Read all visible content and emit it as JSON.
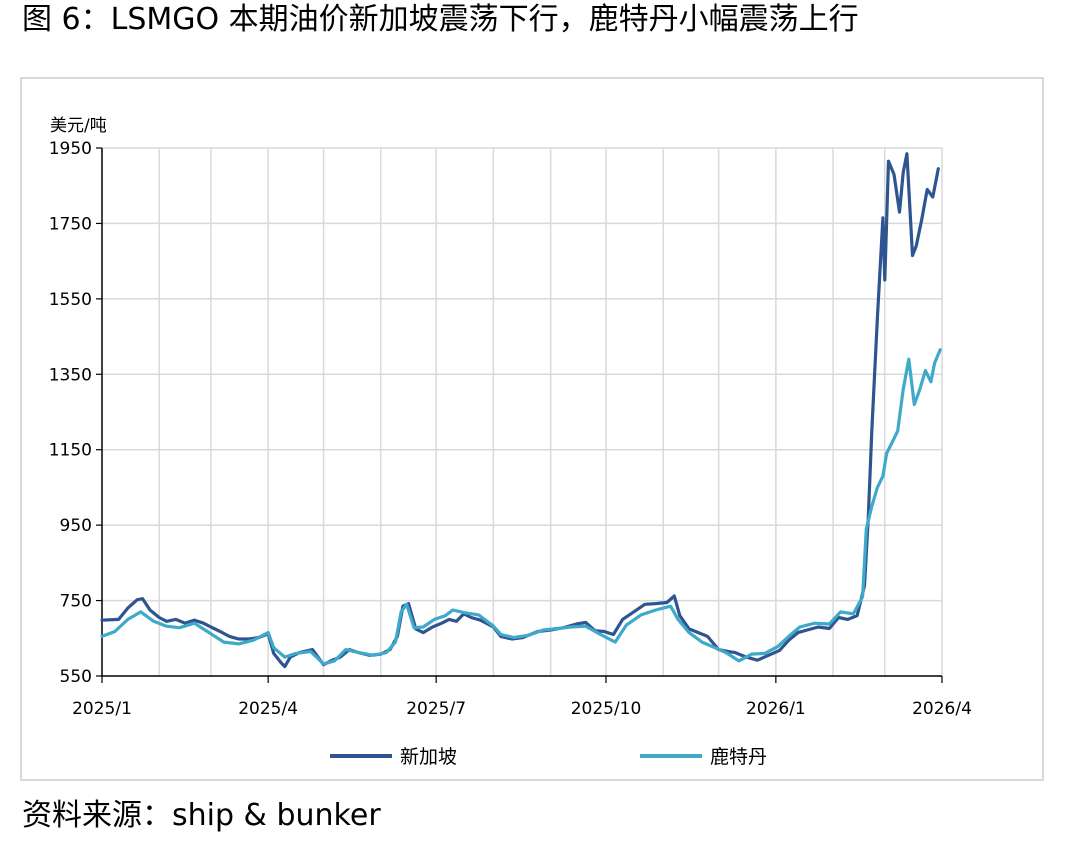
{
  "figure": {
    "title": "图 6：LSMGO 本期油价新加坡震荡下行，鹿特丹小幅震荡上行",
    "source": "资料来源：ship & bunker"
  },
  "chart_data": {
    "type": "line",
    "ylabel": "美元/吨",
    "ylim": [
      550,
      1950
    ],
    "yticks": [
      550,
      750,
      950,
      1150,
      1350,
      1550,
      1750,
      1950
    ],
    "x_axis": {
      "type": "date",
      "range": [
        "2025-01-01",
        "2026-04-01"
      ],
      "ticks": [
        {
          "date": "2025-01-01",
          "label": "2025/1"
        },
        {
          "date": "2025-04-01",
          "label": "2025/4"
        },
        {
          "date": "2025-07-01",
          "label": "2025/7"
        },
        {
          "date": "2025-10-01",
          "label": "2025/10"
        },
        {
          "date": "2026-01-01",
          "label": "2026/1"
        },
        {
          "date": "2026-04-01",
          "label": "2026/4"
        }
      ]
    },
    "grid": "vertical-and-horizontal",
    "legend_position": "bottom",
    "series": [
      {
        "name": "新加坡",
        "color": "#2e5590",
        "points": [
          [
            "2025-01-01",
            698
          ],
          [
            "2025-01-10",
            700
          ],
          [
            "2025-01-15",
            730
          ],
          [
            "2025-01-20",
            752
          ],
          [
            "2025-01-23",
            755
          ],
          [
            "2025-01-27",
            725
          ],
          [
            "2025-02-01",
            705
          ],
          [
            "2025-02-05",
            695
          ],
          [
            "2025-02-10",
            700
          ],
          [
            "2025-02-15",
            690
          ],
          [
            "2025-02-20",
            698
          ],
          [
            "2025-02-25",
            690
          ],
          [
            "2025-03-01",
            680
          ],
          [
            "2025-03-06",
            668
          ],
          [
            "2025-03-11",
            655
          ],
          [
            "2025-03-16",
            648
          ],
          [
            "2025-03-22",
            648
          ],
          [
            "2025-03-27",
            652
          ],
          [
            "2025-04-01",
            662
          ],
          [
            "2025-04-04",
            610
          ],
          [
            "2025-04-08",
            585
          ],
          [
            "2025-04-10",
            575
          ],
          [
            "2025-04-13",
            600
          ],
          [
            "2025-04-18",
            612
          ],
          [
            "2025-04-25",
            620
          ],
          [
            "2025-05-01",
            580
          ],
          [
            "2025-05-05",
            590
          ],
          [
            "2025-05-10",
            600
          ],
          [
            "2025-05-15",
            620
          ],
          [
            "2025-05-20",
            612
          ],
          [
            "2025-05-26",
            605
          ],
          [
            "2025-06-01",
            608
          ],
          [
            "2025-06-06",
            620
          ],
          [
            "2025-06-10",
            655
          ],
          [
            "2025-06-13",
            735
          ],
          [
            "2025-06-16",
            742
          ],
          [
            "2025-06-20",
            675
          ],
          [
            "2025-06-24",
            665
          ],
          [
            "2025-06-29",
            680
          ],
          [
            "2025-07-04",
            690
          ],
          [
            "2025-07-08",
            700
          ],
          [
            "2025-07-12",
            695
          ],
          [
            "2025-07-16",
            715
          ],
          [
            "2025-07-20",
            705
          ],
          [
            "2025-07-25",
            698
          ],
          [
            "2025-08-01",
            680
          ],
          [
            "2025-08-05",
            655
          ],
          [
            "2025-08-11",
            648
          ],
          [
            "2025-08-17",
            652
          ],
          [
            "2025-08-25",
            668
          ],
          [
            "2025-09-01",
            672
          ],
          [
            "2025-09-08",
            678
          ],
          [
            "2025-09-15",
            688
          ],
          [
            "2025-09-20",
            692
          ],
          [
            "2025-09-25",
            670
          ],
          [
            "2025-09-30",
            668
          ],
          [
            "2025-10-05",
            660
          ],
          [
            "2025-10-10",
            700
          ],
          [
            "2025-10-16",
            720
          ],
          [
            "2025-10-22",
            740
          ],
          [
            "2025-10-28",
            742
          ],
          [
            "2025-11-03",
            745
          ],
          [
            "2025-11-07",
            762
          ],
          [
            "2025-11-10",
            710
          ],
          [
            "2025-11-15",
            675
          ],
          [
            "2025-11-20",
            665
          ],
          [
            "2025-11-25",
            655
          ],
          [
            "2025-12-01",
            620
          ],
          [
            "2025-12-06",
            615
          ],
          [
            "2025-12-10",
            612
          ],
          [
            "2025-12-16",
            600
          ],
          [
            "2025-12-22",
            592
          ],
          [
            "2025-12-28",
            605
          ],
          [
            "2026-01-03",
            618
          ],
          [
            "2026-01-08",
            645
          ],
          [
            "2026-01-13",
            665
          ],
          [
            "2026-01-18",
            672
          ],
          [
            "2026-01-24",
            680
          ],
          [
            "2026-01-30",
            676
          ],
          [
            "2026-02-04",
            705
          ],
          [
            "2026-02-09",
            700
          ],
          [
            "2026-02-14",
            710
          ],
          [
            "2026-02-18",
            790
          ],
          [
            "2026-02-20",
            965
          ],
          [
            "2026-02-22",
            1200
          ],
          [
            "2026-02-25",
            1500
          ],
          [
            "2026-02-28",
            1765
          ],
          [
            "2026-03-01",
            1600
          ],
          [
            "2026-03-03",
            1915
          ],
          [
            "2026-03-06",
            1880
          ],
          [
            "2026-03-09",
            1780
          ],
          [
            "2026-03-11",
            1885
          ],
          [
            "2026-03-13",
            1935
          ],
          [
            "2026-03-16",
            1665
          ],
          [
            "2026-03-18",
            1690
          ],
          [
            "2026-03-21",
            1760
          ],
          [
            "2026-03-24",
            1840
          ],
          [
            "2026-03-27",
            1820
          ],
          [
            "2026-03-30",
            1895
          ]
        ]
      },
      {
        "name": "鹿特丹",
        "color": "#3fa9c9",
        "points": [
          [
            "2025-01-01",
            655
          ],
          [
            "2025-01-08",
            668
          ],
          [
            "2025-01-15",
            700
          ],
          [
            "2025-01-22",
            720
          ],
          [
            "2025-01-29",
            695
          ],
          [
            "2025-02-05",
            682
          ],
          [
            "2025-02-12",
            678
          ],
          [
            "2025-02-20",
            690
          ],
          [
            "2025-02-28",
            665
          ],
          [
            "2025-03-08",
            640
          ],
          [
            "2025-03-16",
            635
          ],
          [
            "2025-03-24",
            645
          ],
          [
            "2025-04-01",
            665
          ],
          [
            "2025-04-04",
            625
          ],
          [
            "2025-04-10",
            600
          ],
          [
            "2025-04-16",
            610
          ],
          [
            "2025-04-24",
            615
          ],
          [
            "2025-05-01",
            582
          ],
          [
            "2025-05-07",
            590
          ],
          [
            "2025-05-13",
            620
          ],
          [
            "2025-05-20",
            612
          ],
          [
            "2025-05-28",
            605
          ],
          [
            "2025-06-04",
            612
          ],
          [
            "2025-06-09",
            640
          ],
          [
            "2025-06-12",
            720
          ],
          [
            "2025-06-15",
            740
          ],
          [
            "2025-06-19",
            678
          ],
          [
            "2025-06-24",
            680
          ],
          [
            "2025-06-30",
            700
          ],
          [
            "2025-07-06",
            710
          ],
          [
            "2025-07-10",
            725
          ],
          [
            "2025-07-16",
            718
          ],
          [
            "2025-07-24",
            712
          ],
          [
            "2025-08-01",
            682
          ],
          [
            "2025-08-05",
            660
          ],
          [
            "2025-08-12",
            652
          ],
          [
            "2025-08-20",
            658
          ],
          [
            "2025-08-28",
            672
          ],
          [
            "2025-09-05",
            676
          ],
          [
            "2025-09-12",
            680
          ],
          [
            "2025-09-20",
            682
          ],
          [
            "2025-09-28",
            660
          ],
          [
            "2025-10-06",
            640
          ],
          [
            "2025-10-12",
            685
          ],
          [
            "2025-10-20",
            712
          ],
          [
            "2025-10-28",
            725
          ],
          [
            "2025-11-05",
            735
          ],
          [
            "2025-11-09",
            700
          ],
          [
            "2025-11-15",
            665
          ],
          [
            "2025-11-22",
            640
          ],
          [
            "2025-11-29",
            625
          ],
          [
            "2025-12-05",
            612
          ],
          [
            "2025-12-12",
            590
          ],
          [
            "2025-12-19",
            608
          ],
          [
            "2025-12-26",
            610
          ],
          [
            "2026-01-02",
            628
          ],
          [
            "2026-01-08",
            655
          ],
          [
            "2026-01-14",
            680
          ],
          [
            "2026-01-22",
            690
          ],
          [
            "2026-01-30",
            688
          ],
          [
            "2026-02-05",
            720
          ],
          [
            "2026-02-12",
            715
          ],
          [
            "2026-02-17",
            760
          ],
          [
            "2026-02-19",
            940
          ],
          [
            "2026-02-22",
            1000
          ],
          [
            "2026-02-25",
            1050
          ],
          [
            "2026-02-28",
            1080
          ],
          [
            "2026-03-02",
            1140
          ],
          [
            "2026-03-05",
            1170
          ],
          [
            "2026-03-08",
            1200
          ],
          [
            "2026-03-11",
            1310
          ],
          [
            "2026-03-14",
            1390
          ],
          [
            "2026-03-17",
            1270
          ],
          [
            "2026-03-20",
            1310
          ],
          [
            "2026-03-23",
            1360
          ],
          [
            "2026-03-26",
            1330
          ],
          [
            "2026-03-28",
            1380
          ],
          [
            "2026-03-31",
            1415
          ]
        ]
      }
    ]
  }
}
